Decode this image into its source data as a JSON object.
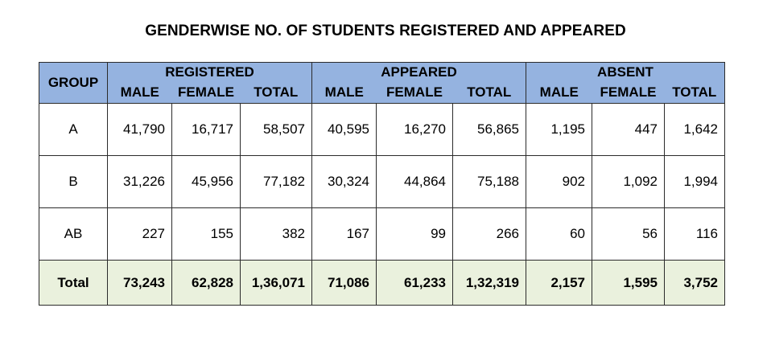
{
  "title": "GENDERWISE NO. OF STUDENTS REGISTERED AND APPEARED",
  "headers": {
    "group": "GROUP",
    "sections": [
      "REGISTERED",
      "APPEARED",
      "ABSENT"
    ],
    "sub": [
      "MALE",
      "FEMALE",
      "TOTAL"
    ]
  },
  "rows": [
    {
      "group": "A",
      "values": [
        "41,790",
        "16,717",
        "58,507",
        "40,595",
        "16,270",
        "56,865",
        "1,195",
        "447",
        "1,642"
      ]
    },
    {
      "group": "B",
      "values": [
        "31,226",
        "45,956",
        "77,182",
        "30,324",
        "44,864",
        "75,188",
        "902",
        "1,092",
        "1,994"
      ]
    },
    {
      "group": "AB",
      "values": [
        "227",
        "155",
        "382",
        "167",
        "99",
        "266",
        "60",
        "56",
        "116"
      ]
    }
  ],
  "total": {
    "label": "Total",
    "values": [
      "73,243",
      "62,828",
      "1,36,071",
      "71,086",
      "61,233",
      "1,32,319",
      "2,157",
      "1,595",
      "3,752"
    ]
  },
  "colors": {
    "header_bg": "#95b3e0",
    "total_bg": "#eaf1dd",
    "border": "#2b2b2b"
  }
}
